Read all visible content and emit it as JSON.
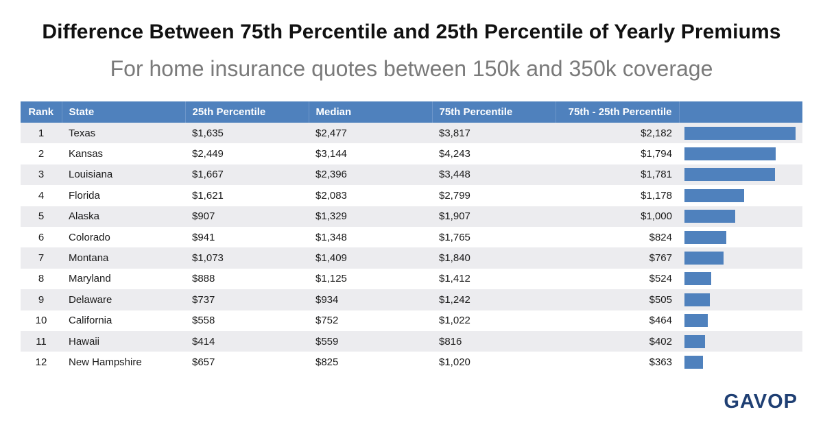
{
  "title": "Difference Between 75th Percentile and 25th Percentile of Yearly Premiums",
  "subtitle": "For home insurance quotes between 150k and 350k coverage",
  "logo": "GAVOP",
  "colors": {
    "header_bg": "#4f81bd",
    "bar": "#4f81bd",
    "row_alt": "#ececef",
    "logo": "#1f3f73",
    "subtitle": "#7a7a7a"
  },
  "chart_data": {
    "type": "table",
    "headers": [
      "Rank",
      "State",
      "25th Percentile",
      "Median",
      "75th Percentile",
      "75th - 25th Percentile"
    ],
    "rows": [
      {
        "rank": "1",
        "state": "Texas",
        "p25": "$1,635",
        "median": "$2,477",
        "p75": "$3,817",
        "diff": "$2,182",
        "diff_value": 2182
      },
      {
        "rank": "2",
        "state": "Kansas",
        "p25": "$2,449",
        "median": "$3,144",
        "p75": "$4,243",
        "diff": "$1,794",
        "diff_value": 1794
      },
      {
        "rank": "3",
        "state": "Louisiana",
        "p25": "$1,667",
        "median": "$2,396",
        "p75": "$3,448",
        "diff": "$1,781",
        "diff_value": 1781
      },
      {
        "rank": "4",
        "state": "Florida",
        "p25": "$1,621",
        "median": "$2,083",
        "p75": "$2,799",
        "diff": "$1,178",
        "diff_value": 1178
      },
      {
        "rank": "5",
        "state": "Alaska",
        "p25": "$907",
        "median": "$1,329",
        "p75": "$1,907",
        "diff": "$1,000",
        "diff_value": 1000
      },
      {
        "rank": "6",
        "state": "Colorado",
        "p25": "$941",
        "median": "$1,348",
        "p75": "$1,765",
        "diff": "$824",
        "diff_value": 824
      },
      {
        "rank": "7",
        "state": "Montana",
        "p25": "$1,073",
        "median": "$1,409",
        "p75": "$1,840",
        "diff": "$767",
        "diff_value": 767
      },
      {
        "rank": "8",
        "state": "Maryland",
        "p25": "$888",
        "median": "$1,125",
        "p75": "$1,412",
        "diff": "$524",
        "diff_value": 524
      },
      {
        "rank": "9",
        "state": "Delaware",
        "p25": "$737",
        "median": "$934",
        "p75": "$1,242",
        "diff": "$505",
        "diff_value": 505
      },
      {
        "rank": "10",
        "state": "California",
        "p25": "$558",
        "median": "$752",
        "p75": "$1,022",
        "diff": "$464",
        "diff_value": 464
      },
      {
        "rank": "11",
        "state": "Hawaii",
        "p25": "$414",
        "median": "$559",
        "p75": "$816",
        "diff": "$402",
        "diff_value": 402
      },
      {
        "rank": "12",
        "state": "New Hampshire",
        "p25": "$657",
        "median": "$825",
        "p75": "$1,020",
        "diff": "$363",
        "diff_value": 363
      }
    ],
    "bar_series": {
      "values": [
        2182,
        1794,
        1781,
        1178,
        1000,
        824,
        767,
        524,
        505,
        464,
        402,
        363
      ],
      "xlim": [
        0,
        2182
      ]
    }
  }
}
